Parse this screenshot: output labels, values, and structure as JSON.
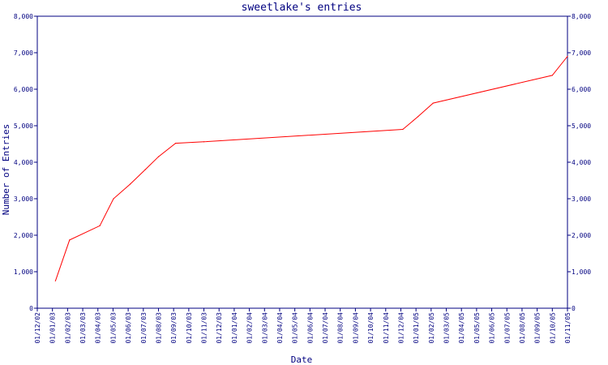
{
  "chart_data": {
    "type": "line",
    "title": "sweetlake's entries",
    "xlabel": "Date",
    "ylabel": "Number of Entries",
    "ylim": [
      0,
      8000
    ],
    "y_ticks": [
      0,
      1000,
      2000,
      3000,
      4000,
      5000,
      6000,
      7000,
      8000
    ],
    "y_tick_labels": [
      "0",
      "1,000",
      "2,000",
      "3,000",
      "4,000",
      "5,000",
      "6,000",
      "7,000",
      "8,000"
    ],
    "x_tick_labels": [
      "01/12/02",
      "01/01/03",
      "01/02/03",
      "01/03/03",
      "01/04/03",
      "01/05/03",
      "01/06/03",
      "01/07/03",
      "01/08/03",
      "01/09/03",
      "01/10/03",
      "01/11/03",
      "01/12/03",
      "01/01/04",
      "01/02/04",
      "01/03/04",
      "01/04/04",
      "01/05/04",
      "01/06/04",
      "01/07/04",
      "01/08/04",
      "01/09/04",
      "01/10/04",
      "01/11/04",
      "01/12/04",
      "01/01/05",
      "01/02/05",
      "01/03/05",
      "01/04/05",
      "01/05/05",
      "01/06/05",
      "01/07/05",
      "01/08/05",
      "01/09/05",
      "01/10/05",
      "01/11/05"
    ],
    "grid": false,
    "series": [
      {
        "color": "#ff0000",
        "points": [
          {
            "x": "2003-01-07",
            "y": 750
          },
          {
            "x": "2003-02-05",
            "y": 1870
          },
          {
            "x": "2003-04-05",
            "y": 2260
          },
          {
            "x": "2003-05-02",
            "y": 3000
          },
          {
            "x": "2003-06-05",
            "y": 3400
          },
          {
            "x": "2003-07-05",
            "y": 3800
          },
          {
            "x": "2003-08-01",
            "y": 4150
          },
          {
            "x": "2003-09-05",
            "y": 4520
          },
          {
            "x": "2003-11-01",
            "y": 4560
          },
          {
            "x": "2004-12-05",
            "y": 4900
          },
          {
            "x": "2005-01-05",
            "y": 5250
          },
          {
            "x": "2005-02-05",
            "y": 5620
          },
          {
            "x": "2005-10-01",
            "y": 6380
          },
          {
            "x": "2005-11-01",
            "y": 6900
          }
        ]
      }
    ]
  }
}
